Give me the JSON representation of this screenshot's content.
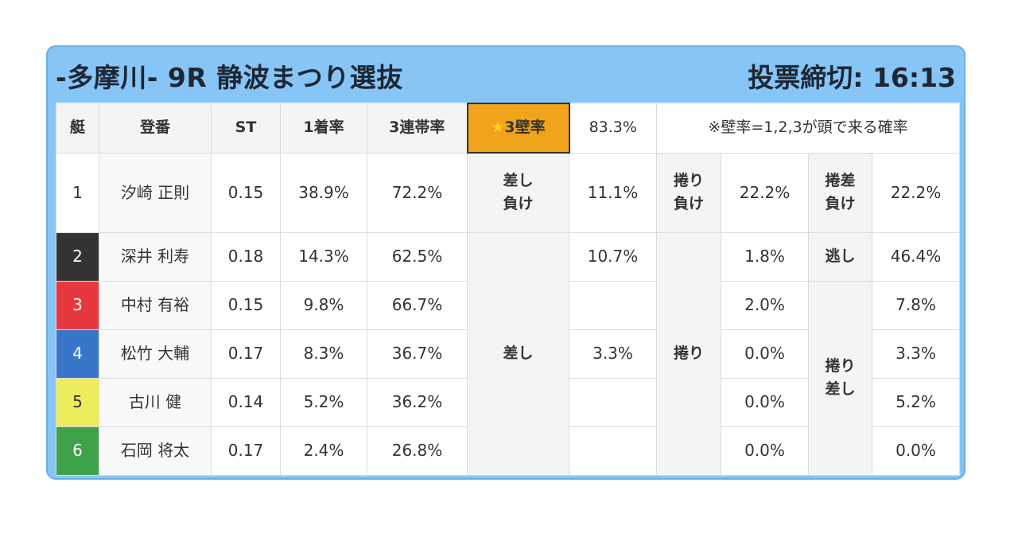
{
  "header": {
    "title": "-多摩川- 9R 静波まつり選抜",
    "deadline": "投票締切: 16:13"
  },
  "table": {
    "columns": {
      "lane": "艇",
      "name": "登番",
      "st": "ST",
      "win1": "1着率",
      "top3": "3連帯率",
      "kabe_label": "3壁率",
      "kabe_pct": "83.3%",
      "note": "※壁率=1,2,3が頭で来る確率"
    },
    "rows": [
      {
        "lane": "1",
        "name": "汐崎 正則",
        "st": "0.15",
        "win1": "38.9%",
        "top3": "72.2%"
      },
      {
        "lane": "2",
        "name": "深井 利寿",
        "st": "0.18",
        "win1": "14.3%",
        "top3": "62.5%"
      },
      {
        "lane": "3",
        "name": "中村 有裕",
        "st": "0.15",
        "win1": "9.8%",
        "top3": "66.7%"
      },
      {
        "lane": "4",
        "name": "松竹 大輔",
        "st": "0.17",
        "win1": "8.3%",
        "top3": "36.7%"
      },
      {
        "lane": "5",
        "name": "古川 健",
        "st": "0.14",
        "win1": "5.2%",
        "top3": "36.2%"
      },
      {
        "lane": "6",
        "name": "石岡 将太",
        "st": "0.17",
        "win1": "2.4%",
        "top3": "26.8%"
      }
    ],
    "stats": {
      "sashi_make_label": "差し\n負け",
      "sashi_make_pct": "11.1%",
      "makuri_make_label": "捲り\n負け",
      "makuri_make_pct": "22.2%",
      "makurizashi_make_label": "捲差\n負け",
      "makurizashi_make_pct": "22.2%",
      "sashi_label": "差し",
      "sashi_pct_2": "10.7%",
      "sashi_pct_4": "3.3%",
      "makuri_label": "捲り",
      "makuri_pct_2": "1.8%",
      "makuri_pct_3": "2.0%",
      "makuri_pct_4": "0.0%",
      "makuri_pct_5": "0.0%",
      "makuri_pct_6": "0.0%",
      "nige_label": "逃し",
      "nige_pct": "46.4%",
      "makurizashi_label": "捲り\n差し",
      "makurizashi_pct_3": "7.8%",
      "makurizashi_pct_4": "3.3%",
      "makurizashi_pct_5": "5.2%",
      "makurizashi_pct_6": "0.0%"
    }
  }
}
